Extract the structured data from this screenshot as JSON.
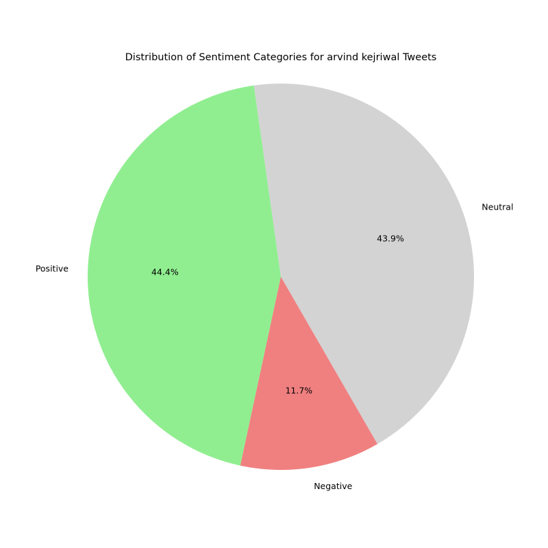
{
  "chart_data": {
    "type": "pie",
    "title": "Distribution of Sentiment Categories for arvind kejriwal Tweets",
    "slices": [
      {
        "label": "Neutral",
        "value": 43.9,
        "pct_label": "43.9%",
        "color": "#d3d3d3"
      },
      {
        "label": "Positive",
        "value": 44.4,
        "pct_label": "44.4%",
        "color": "#90ee90"
      },
      {
        "label": "Negative",
        "value": 11.7,
        "pct_label": "11.7%",
        "color": "#f08080"
      }
    ]
  }
}
